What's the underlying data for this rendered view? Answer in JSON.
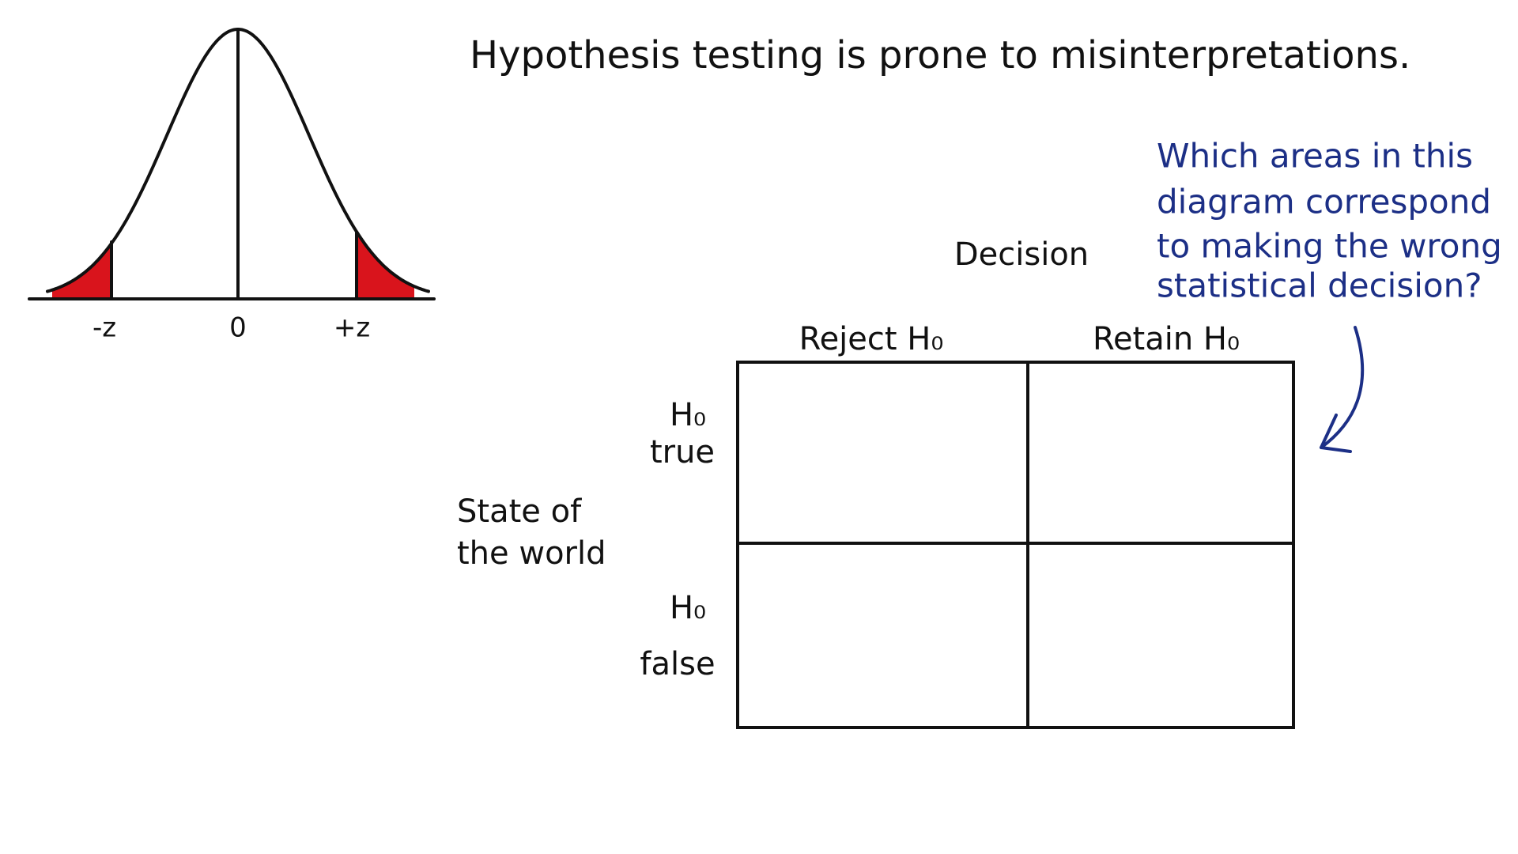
{
  "title": "Hypothesis testing is prone to misinterpretations.",
  "curve": {
    "labels": [
      "-z",
      "0",
      "+z"
    ]
  },
  "decision_label": "Decision",
  "columns": [
    "Reject H₀",
    "Retain H₀"
  ],
  "rows": [
    [
      "H₀",
      "true"
    ],
    [
      "H₀",
      "false"
    ]
  ],
  "state_label": [
    "State of",
    "the world"
  ],
  "question": [
    "Which areas in this",
    "diagram correspond",
    "to making the wrong",
    "statistical decision?"
  ]
}
